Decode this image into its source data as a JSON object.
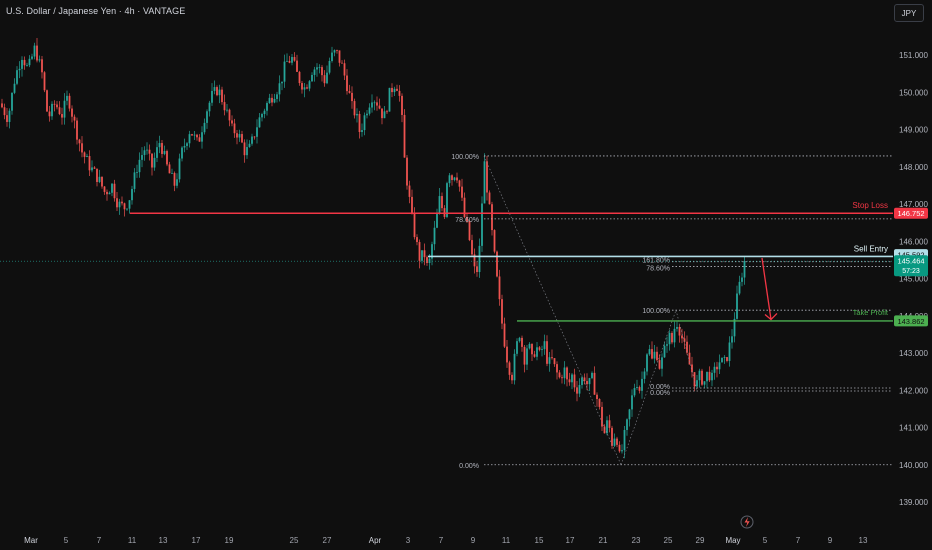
{
  "header": {
    "title": "U.S. Dollar / Japanese Yen · 4h · VANTAGE",
    "currency_button": "JPY"
  },
  "colors": {
    "background": "#0f0f0f",
    "up": "#26a69a",
    "down": "#ef5350",
    "stop_loss": "#f23645",
    "take_profit": "#4caf50",
    "sell_entry": "#b2dfe8",
    "fib": "#b2b5be"
  },
  "chart_data": {
    "type": "candlestick",
    "title": "U.S. Dollar / Japanese Yen · 4h · VANTAGE",
    "ylim": [
      138.6,
      152.4
    ],
    "y_ticks": [
      "151.000",
      "150.000",
      "149.000",
      "148.000",
      "147.000",
      "146.000",
      "145.000",
      "144.000",
      "143.000",
      "142.000",
      "141.000",
      "140.000",
      "139.000"
    ],
    "x_ticks": [
      "Mar",
      "5",
      "7",
      "11",
      "13",
      "17",
      "19",
      "25",
      "27",
      "Apr",
      "3",
      "7",
      "9",
      "11",
      "15",
      "17",
      "21",
      "23",
      "25",
      "29",
      "May",
      "5",
      "7",
      "9",
      "13"
    ],
    "price_path": [
      [
        0,
        149.7
      ],
      [
        8,
        149.3
      ],
      [
        15,
        150.4
      ],
      [
        22,
        151.0
      ],
      [
        28,
        150.6
      ],
      [
        35,
        151.2
      ],
      [
        42,
        150.5
      ],
      [
        48,
        149.3
      ],
      [
        55,
        149.7
      ],
      [
        62,
        149.4
      ],
      [
        68,
        149.9
      ],
      [
        75,
        149.1
      ],
      [
        82,
        148.4
      ],
      [
        90,
        148.0
      ],
      [
        98,
        147.7
      ],
      [
        105,
        147.3
      ],
      [
        112,
        147.5
      ],
      [
        118,
        147.0
      ],
      [
        125,
        146.9
      ],
      [
        130,
        147.2
      ],
      [
        138,
        148.1
      ],
      [
        145,
        148.5
      ],
      [
        152,
        148.0
      ],
      [
        160,
        148.7
      ],
      [
        168,
        147.9
      ],
      [
        175,
        147.5
      ],
      [
        182,
        148.4
      ],
      [
        190,
        149.0
      ],
      [
        198,
        148.6
      ],
      [
        205,
        149.4
      ],
      [
        212,
        149.9
      ],
      [
        218,
        150.1
      ],
      [
        225,
        149.6
      ],
      [
        232,
        149.0
      ],
      [
        238,
        148.9
      ],
      [
        245,
        148.4
      ],
      [
        250,
        148.5
      ],
      [
        258,
        149.2
      ],
      [
        265,
        149.6
      ],
      [
        272,
        149.9
      ],
      [
        280,
        150.2
      ],
      [
        286,
        150.8
      ],
      [
        292,
        150.9
      ],
      [
        298,
        150.4
      ],
      [
        305,
        150.1
      ],
      [
        312,
        150.6
      ],
      [
        318,
        150.7
      ],
      [
        325,
        150.3
      ],
      [
        330,
        150.9
      ],
      [
        336,
        151.1
      ],
      [
        342,
        150.7
      ],
      [
        348,
        150.1
      ],
      [
        352,
        149.6
      ],
      [
        356,
        149.4
      ],
      [
        360,
        148.9
      ],
      [
        366,
        149.5
      ],
      [
        372,
        149.9
      ],
      [
        378,
        149.7
      ],
      [
        384,
        149.3
      ],
      [
        390,
        150.0
      ],
      [
        396,
        150.3
      ],
      [
        401,
        149.7
      ],
      [
        404,
        148.3
      ],
      [
        408,
        147.4
      ],
      [
        412,
        146.6
      ],
      [
        416,
        146.0
      ],
      [
        420,
        145.5
      ],
      [
        424,
        145.7
      ],
      [
        428,
        145.2
      ],
      [
        432,
        145.9
      ],
      [
        436,
        146.5
      ],
      [
        440,
        147.2
      ],
      [
        444,
        146.6
      ],
      [
        448,
        148.0
      ],
      [
        452,
        147.7
      ],
      [
        456,
        147.9
      ],
      [
        460,
        147.4
      ],
      [
        464,
        146.7
      ],
      [
        468,
        146.3
      ],
      [
        472,
        145.6
      ],
      [
        476,
        145.0
      ],
      [
        480,
        145.9
      ],
      [
        484,
        148.2
      ],
      [
        488,
        147.2
      ],
      [
        492,
        146.2
      ],
      [
        496,
        145.2
      ],
      [
        500,
        144.2
      ],
      [
        504,
        143.4
      ],
      [
        508,
        142.7
      ],
      [
        512,
        142.4
      ],
      [
        516,
        143.1
      ],
      [
        520,
        143.6
      ],
      [
        524,
        142.8
      ],
      [
        528,
        143.3
      ],
      [
        532,
        142.8
      ],
      [
        536,
        143.2
      ],
      [
        540,
        142.9
      ],
      [
        544,
        143.3
      ],
      [
        548,
        142.7
      ],
      [
        552,
        142.8
      ],
      [
        556,
        142.5
      ],
      [
        560,
        142.3
      ],
      [
        564,
        142.6
      ],
      [
        568,
        142.1
      ],
      [
        572,
        142.4
      ],
      [
        576,
        142.0
      ],
      [
        580,
        142.2
      ],
      [
        584,
        142.4
      ],
      [
        588,
        142.1
      ],
      [
        592,
        142.3
      ],
      [
        596,
        141.9
      ],
      [
        600,
        141.4
      ],
      [
        604,
        140.8
      ],
      [
        608,
        141.2
      ],
      [
        612,
        140.6
      ],
      [
        616,
        140.9
      ],
      [
        620,
        140.1
      ],
      [
        624,
        140.7
      ],
      [
        628,
        141.2
      ],
      [
        632,
        141.8
      ],
      [
        636,
        142.3
      ],
      [
        640,
        142.0
      ],
      [
        644,
        142.6
      ],
      [
        648,
        143.2
      ],
      [
        652,
        142.8
      ],
      [
        656,
        143.1
      ],
      [
        660,
        142.6
      ],
      [
        664,
        143.0
      ],
      [
        668,
        143.5
      ],
      [
        672,
        143.3
      ],
      [
        676,
        143.9
      ],
      [
        680,
        143.6
      ],
      [
        684,
        143.2
      ],
      [
        688,
        142.8
      ],
      [
        692,
        142.5
      ],
      [
        696,
        142.1
      ],
      [
        700,
        142.4
      ],
      [
        704,
        142.2
      ],
      [
        708,
        142.5
      ],
      [
        712,
        142.3
      ],
      [
        716,
        142.6
      ],
      [
        720,
        142.8
      ],
      [
        724,
        142.7
      ],
      [
        728,
        143.0
      ],
      [
        732,
        143.5
      ],
      [
        736,
        144.3
      ],
      [
        740,
        144.9
      ],
      [
        744,
        145.4
      ],
      [
        746,
        145.46
      ]
    ],
    "lines": {
      "stop_loss": {
        "label": "Stop Loss",
        "price": "146.752",
        "value": 146.752
      },
      "sell_entry": {
        "label": "Sell Entry",
        "price": "145.592",
        "value": 145.592
      },
      "take_profit": {
        "label": "Take Profit",
        "price": "143.862",
        "value": 143.862
      },
      "current": {
        "price": "145.464",
        "countdown": "57:23",
        "value": 145.464
      }
    },
    "fib_left": [
      {
        "label": "100.00%",
        "value": 148.29
      },
      {
        "label": "78.60%",
        "value": 146.6
      },
      {
        "label": "161.80%",
        "value": 145.45
      },
      {
        "label": "78.60%",
        "value": 145.32
      },
      {
        "label": "0.00%",
        "value": 140.0
      }
    ],
    "fib_right": [
      {
        "label": "100.00%",
        "value": 144.15
      },
      {
        "label": "0.00%",
        "value": 142.06
      },
      {
        "label": "0.00%",
        "value": 141.98
      }
    ]
  }
}
